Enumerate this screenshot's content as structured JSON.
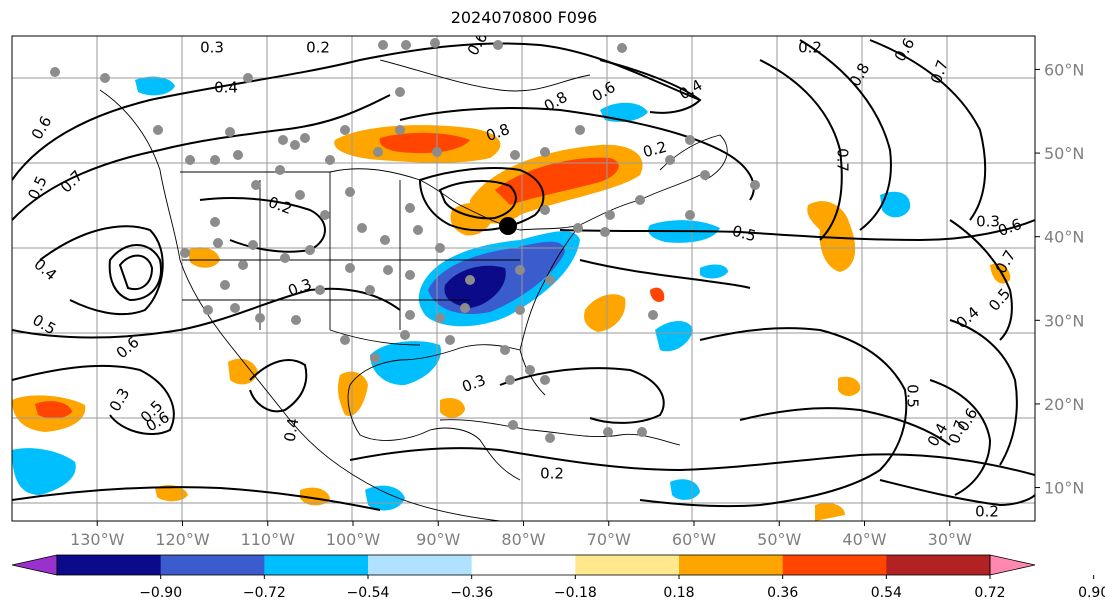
{
  "title": "2024070800 F096",
  "map": {
    "projection": "PlateCarree",
    "lon_range": [
      -140,
      -20
    ],
    "lat_range": [
      6,
      64
    ],
    "lon_ticks": [
      {
        "value": -130,
        "label": "130°W"
      },
      {
        "value": -120,
        "label": "120°W"
      },
      {
        "value": -110,
        "label": "110°W"
      },
      {
        "value": -100,
        "label": "100°W"
      },
      {
        "value": -90,
        "label": "90°W"
      },
      {
        "value": -80,
        "label": "80°W"
      },
      {
        "value": -70,
        "label": "70°W"
      },
      {
        "value": -60,
        "label": "60°W"
      },
      {
        "value": -50,
        "label": "50°W"
      },
      {
        "value": -40,
        "label": "40°W"
      },
      {
        "value": -30,
        "label": "30°W"
      }
    ],
    "lat_ticks": [
      {
        "value": 60,
        "label": "60°N"
      },
      {
        "value": 50,
        "label": "50°N"
      },
      {
        "value": 40,
        "label": "40°N"
      },
      {
        "value": 30,
        "label": "30°N"
      },
      {
        "value": 20,
        "label": "20°N"
      },
      {
        "value": 10,
        "label": "10°N"
      }
    ],
    "grid": true,
    "marker_color": "#000000",
    "station_color": "#8c8c8c",
    "contour_labels": [
      "0.3",
      "0.2",
      "0.4",
      "0.6",
      "0.5",
      "0.7",
      "0.2",
      "0.3",
      "0.8",
      "0.6",
      "0.4",
      "0.2",
      "0.6",
      "0.8",
      "0.5",
      "0.6",
      "0.7",
      "0.5",
      "0.4",
      "0.5",
      "0.4",
      "0.6",
      "0.4",
      "0.3",
      "0.2",
      "0.3",
      "0.5",
      "0.6",
      "0.7",
      "0.3",
      "0.2",
      "0.5",
      "0.4",
      "0.6",
      "0.7",
      "0.8",
      "0.7",
      "0.6",
      "0.2"
    ]
  },
  "colorbar": {
    "extend": "both",
    "colors": [
      "#9932cc",
      "#0b0b8a",
      "#3a5ccc",
      "#00bfff",
      "#b0e2ff",
      "#ffffff",
      "#ffe98c",
      "#ffa500",
      "#ff4500",
      "#b22222",
      "#ff88b0"
    ],
    "ticks": [
      "−0.90",
      "−0.72",
      "−0.54",
      "−0.36",
      "−0.18",
      "0.18",
      "0.36",
      "0.54",
      "0.72",
      "0.90"
    ]
  }
}
